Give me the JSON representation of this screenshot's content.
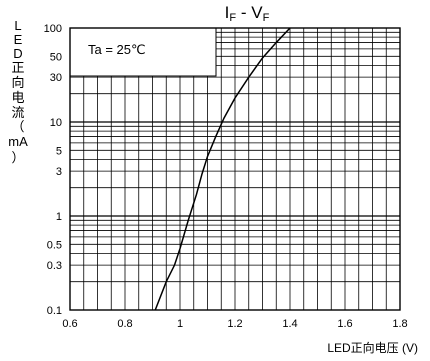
{
  "chart_data": {
    "type": "line",
    "title": {
      "i": "I",
      "i_sub": "F",
      "sep": " - ",
      "v": "V",
      "v_sub": "F"
    },
    "ylabel_chars": [
      "L",
      "E",
      "D",
      "正",
      "向",
      "电",
      "流",
      "（",
      "mA",
      "）"
    ],
    "xlabel": "LED正向电压 (V)",
    "annotation": "Ta = 25℃",
    "x_ticks": [
      "0.6",
      "0.8",
      "1",
      "1.2",
      "1.4",
      "1.6",
      "1.8"
    ],
    "y_ticks": [
      "0.1",
      "0.3",
      "0.5",
      "1",
      "3",
      "5",
      "10",
      "30",
      "50",
      "100"
    ],
    "xlim": [
      0.6,
      1.8
    ],
    "ylim": [
      0.1,
      100
    ],
    "y_scale": "log",
    "grid": true,
    "series": [
      {
        "x": [
          0.91,
          0.95,
          0.98,
          1.0,
          1.03,
          1.06,
          1.08,
          1.1,
          1.13,
          1.16,
          1.2,
          1.25,
          1.3,
          1.35,
          1.4
        ],
        "y": [
          0.1,
          0.2,
          0.3,
          0.45,
          0.9,
          1.7,
          2.8,
          4.3,
          7,
          11,
          18,
          30,
          48,
          70,
          100
        ]
      }
    ],
    "line_color": "#000000"
  }
}
